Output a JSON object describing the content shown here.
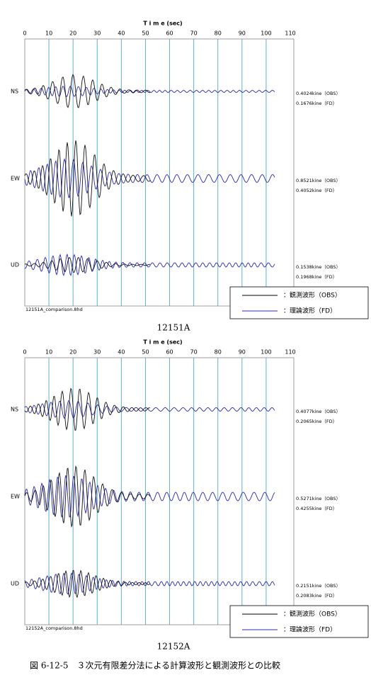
{
  "figures": [
    {
      "axis_title": "T i m e (sec)",
      "xticks": [
        "0",
        "10",
        "20",
        "30",
        "40",
        "50",
        "60",
        "70",
        "80",
        "90",
        "100",
        "110"
      ],
      "traces": [
        {
          "component": "NS",
          "obs_label": "0.4024kine（OBS）",
          "fd_label": "0.1676kine（FD）"
        },
        {
          "component": "EW",
          "obs_label": "0.8521kine（OBS）",
          "fd_label": "0.4052kine（FD）"
        },
        {
          "component": "UD",
          "obs_label": "0.1538kine（OBS）",
          "fd_label": "0.1968kine（FD）"
        }
      ],
      "legend": {
        "obs": "：観測波形（OBS）",
        "fd": "：理論波形（FD）"
      },
      "file": "12151A_comparison.8hd",
      "caption": "12151A"
    },
    {
      "axis_title": "T i m e (sec)",
      "xticks": [
        "0",
        "10",
        "20",
        "30",
        "40",
        "50",
        "60",
        "70",
        "80",
        "90",
        "100",
        "110"
      ],
      "traces": [
        {
          "component": "NS",
          "obs_label": "0.4077kine（OBS）",
          "fd_label": "0.2065kine（FD）"
        },
        {
          "component": "EW",
          "obs_label": "0.5271kine（OBS）",
          "fd_label": "0.4255kine（FD）"
        },
        {
          "component": "UD",
          "obs_label": "0.2151kine（OBS）",
          "fd_label": "0.2083kine（FD）"
        }
      ],
      "legend": {
        "obs": "：観測波形（OBS）",
        "fd": "：理論波形（FD）"
      },
      "file": "12152A_comparison.8hd",
      "caption": "12152A"
    }
  ],
  "caption": "図 6-12-5　３次元有限差分法による計算波形と観測波形との比較"
}
